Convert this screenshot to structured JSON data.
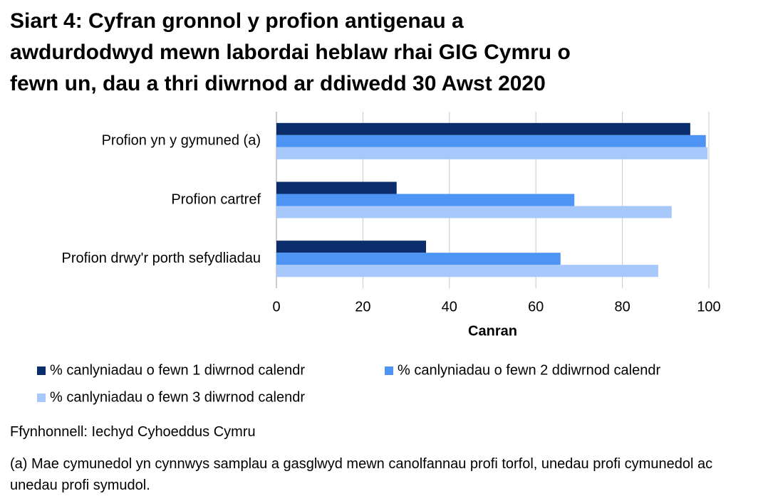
{
  "chart_data": {
    "type": "hbar",
    "title": [
      "Siart 4: Cyfran gronnol y profion antigenau a",
      "awdurdodwyd mewn labordai heblaw rhai GIG Cymru o",
      "fewn un, dau a thri diwrnod ar ddiwedd 30 Awst 2020"
    ],
    "categories": [
      "Profion yn y gymuned (a)",
      "Profion cartref",
      "Profion drwy'r porth sefydliadau"
    ],
    "series": [
      {
        "name": "% canlyniadau o fewn 1 diwrnod calendr",
        "color": "#0b2d6b",
        "values": [
          95.7,
          27.8,
          34.6
        ]
      },
      {
        "name": "% canlyniadau o fewn 2 ddiwrnod calendr",
        "color": "#4d94f5",
        "values": [
          99.3,
          68.9,
          65.7
        ]
      },
      {
        "name": "% canlyniadau o fewn 3 diwrnod calendr",
        "color": "#a6c8fa",
        "values": [
          99.7,
          91.4,
          88.3
        ]
      }
    ],
    "xlabel": "Canran",
    "xlim": [
      0,
      100
    ],
    "xticks": [
      0,
      20,
      40,
      60,
      80,
      100
    ],
    "grid": true,
    "source": "Ffynhonnell: Iechyd Cyhoeddus Cymru",
    "note": "(a) Mae cymunedol yn cynnwys samplau a gasglwyd mewn canolfannau profi torfol, unedau profi cymunedol ac unedau profi symudol."
  }
}
